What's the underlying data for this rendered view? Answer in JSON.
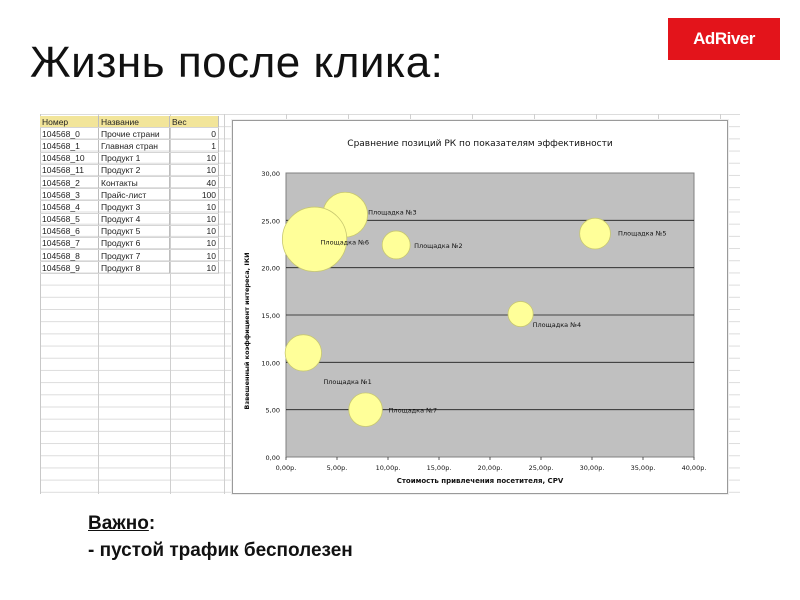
{
  "slide": {
    "title": "Жизнь после клика:",
    "logo_text": "AdRiver",
    "note_heading": "Важно",
    "note_colon": ":",
    "note_line": "- пустой трафик бесполезен"
  },
  "table": {
    "headers": [
      "Номер",
      "Название",
      "Вес"
    ],
    "rows": [
      [
        "104568_0",
        "Прочие страни",
        "0"
      ],
      [
        "104568_1",
        "Главная стран",
        "1"
      ],
      [
        "104568_10",
        "Продукт 1",
        "10"
      ],
      [
        "104568_11",
        "Продукт 2",
        "10"
      ],
      [
        "104568_2",
        "Контакты",
        "40"
      ],
      [
        "104568_3",
        "Прайс-лист",
        "100"
      ],
      [
        "104568_4",
        "Продукт 3",
        "10"
      ],
      [
        "104568_5",
        "Продукт 4",
        "10"
      ],
      [
        "104568_6",
        "Продукт 5",
        "10"
      ],
      [
        "104568_7",
        "Продукт 6",
        "10"
      ],
      [
        "104568_8",
        "Продукт 7",
        "10"
      ],
      [
        "104568_9",
        "Продукт 8",
        "10"
      ]
    ],
    "header_color": "#f2e59a"
  },
  "chart_data": {
    "type": "scatter",
    "subtype": "bubble",
    "title": "Сравнение позиций РК по показателям эффективности",
    "xlabel": "Стоимость привлечения посетителя, CPV",
    "ylabel": "Взвешенный коэффициент интереса, IКИ",
    "xlim": [
      0,
      40
    ],
    "ylim": [
      0,
      30
    ],
    "xticks": [
      "0,00р.",
      "5,00р.",
      "10,00р.",
      "15,00р.",
      "20,00р.",
      "25,00р.",
      "30,00р.",
      "35,00р.",
      "40,00р."
    ],
    "yticks": [
      "0,00",
      "5,00",
      "10,00",
      "15,00",
      "20,00",
      "25,00",
      "30,00"
    ],
    "grid": "horizontal",
    "plot_color": "#c0c0c0",
    "bubble_color": "#ffff99",
    "points": [
      {
        "label": "Площадка №1",
        "x": 1.7,
        "y": 11.0,
        "size": 1.3
      },
      {
        "label": "Площадка №2",
        "x": 10.8,
        "y": 22.4,
        "size": 1.0
      },
      {
        "label": "Площадка №3",
        "x": 5.8,
        "y": 25.6,
        "size": 1.6
      },
      {
        "label": "Площадка №4",
        "x": 23.0,
        "y": 15.1,
        "size": 0.9
      },
      {
        "label": "Площадка №5",
        "x": 30.3,
        "y": 23.6,
        "size": 1.1
      },
      {
        "label": "Площадка №6",
        "x": 2.8,
        "y": 23.0,
        "size": 2.3
      },
      {
        "label": "Площадка №7",
        "x": 7.8,
        "y": 5.0,
        "size": 1.2
      }
    ]
  }
}
